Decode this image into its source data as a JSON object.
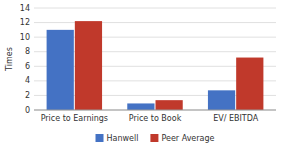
{
  "chart_data": {
    "type": "bar",
    "categories": [
      "Price to Earnings",
      "Price to Book",
      "EV/ EBITDA"
    ],
    "series": [
      {
        "name": "Hanwell",
        "color": "#4472c4",
        "values": [
          11.0,
          0.9,
          2.7
        ]
      },
      {
        "name": "Peer Average",
        "color": "#c0392b",
        "values": [
          12.2,
          1.35,
          7.2
        ]
      }
    ],
    "ylabel": "Times",
    "ylim": [
      0,
      14
    ],
    "yticks": [
      0,
      2,
      4,
      6,
      8,
      10,
      12,
      14
    ],
    "grid": true,
    "legend": "bottom"
  }
}
